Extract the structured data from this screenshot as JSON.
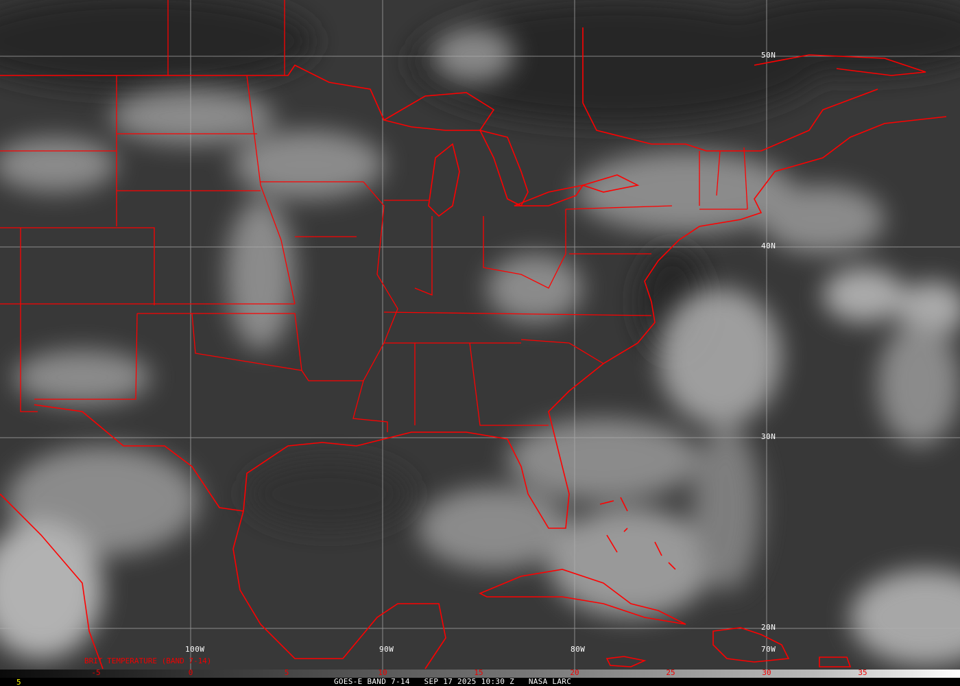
{
  "image": {
    "caption": "GOES-E BAND 7-14   SEP 17 2025 10:30 Z   NASA LARC",
    "frame_number": "5",
    "legend_title": "BRIT TEMPERATURE (BAND 7-14)",
    "boundary_color": "#ff0000",
    "grid_color": "#b0b0b0"
  },
  "grid": {
    "longitudes": [
      "100W",
      "90W",
      "80W",
      "70W"
    ],
    "latitudes": [
      "50N",
      "40N",
      "30N",
      "20N"
    ]
  },
  "colorbar": {
    "labels": [
      "-5",
      "0",
      "5",
      "10",
      "15",
      "20",
      "25",
      "30",
      "35"
    ],
    "range": [
      -10,
      40
    ]
  }
}
